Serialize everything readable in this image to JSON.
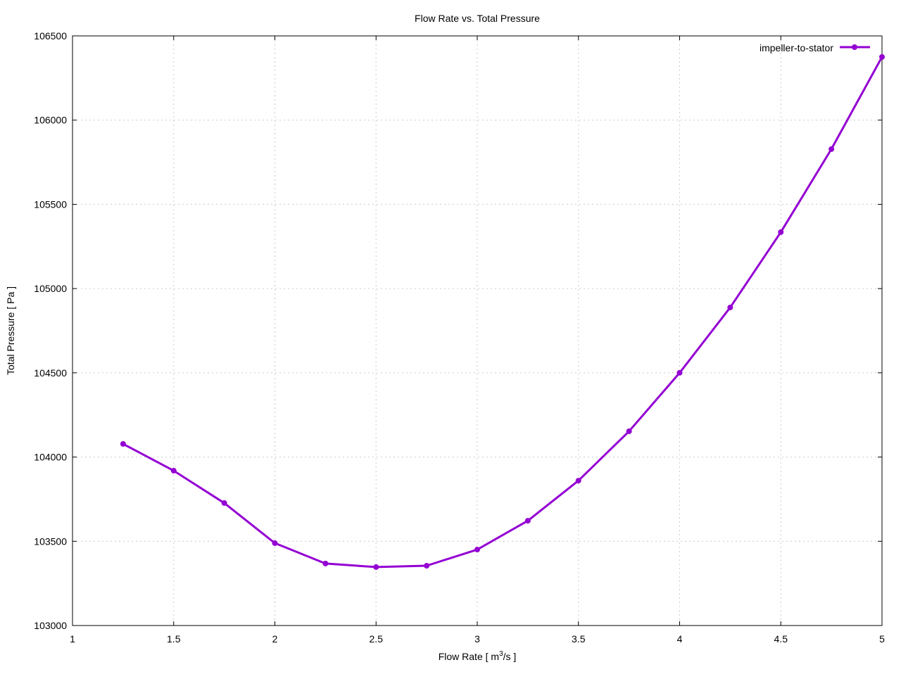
{
  "chart_data": {
    "type": "line",
    "title": "Flow Rate vs. Total Pressure",
    "xlabel": "Flow Rate [ m",
    "xlabel_sup": "3",
    "xlabel_suffix": "/s ]",
    "ylabel": "Total Pressure [ Pa ]",
    "xlim": [
      1,
      5
    ],
    "ylim": [
      103000,
      106500
    ],
    "xticks": [
      1,
      1.5,
      2,
      2.5,
      3,
      3.5,
      4,
      4.5,
      5
    ],
    "xtick_labels": [
      "1",
      "1.5",
      "2",
      "2.5",
      "3",
      "3.5",
      "4",
      "4.5",
      "5"
    ],
    "yticks": [
      103000,
      103500,
      104000,
      104500,
      105000,
      105500,
      106000,
      106500
    ],
    "ytick_labels": [
      "103000",
      "103500",
      "104000",
      "104500",
      "105000",
      "105500",
      "106000",
      "106500"
    ],
    "grid": true,
    "legend_position": "top-right",
    "series": [
      {
        "name": "impeller-to-stator",
        "color": "#9400d3",
        "x": [
          1.25,
          1.5,
          1.75,
          2.0,
          2.25,
          2.5,
          2.75,
          3.0,
          3.25,
          3.5,
          3.75,
          4.0,
          4.25,
          4.5,
          4.75,
          5.0
        ],
        "y": [
          104078,
          103919,
          103727,
          103489,
          103368,
          103347,
          103355,
          103451,
          103622,
          103860,
          104153,
          104500,
          104888,
          105335,
          105828,
          106375
        ]
      }
    ]
  }
}
